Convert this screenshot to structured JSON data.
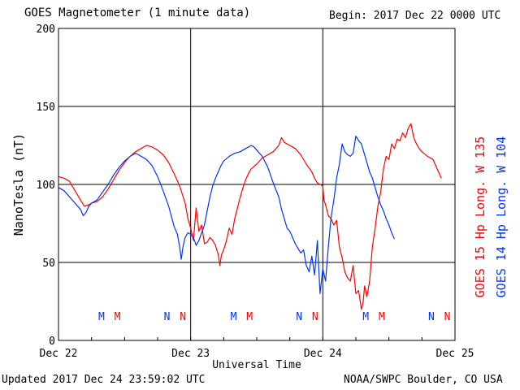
{
  "header": {
    "title": "GOES Magnetometer (1 minute data)",
    "begin": "Begin:  2017 Dec 22 0000 UTC"
  },
  "footer": {
    "updated": "Updated 2017 Dec 24 23:59:02 UTC",
    "credit": "NOAA/SWPC Boulder, CO USA"
  },
  "colors": {
    "red": "#ff0000",
    "blue": "#0033ff",
    "grid": "#000000"
  },
  "chart_data": {
    "type": "line",
    "xlabel": "Universal Time",
    "ylabel": "NanoTesla (nT)",
    "xlim": [
      0,
      72
    ],
    "ylim": [
      0,
      200
    ],
    "yticks": [
      0,
      50,
      100,
      150,
      200
    ],
    "xticks": [
      {
        "hour": 0,
        "label": "Dec 22"
      },
      {
        "hour": 24,
        "label": "Dec 23"
      },
      {
        "hour": 48,
        "label": "Dec 24"
      },
      {
        "hour": 72,
        "label": "Dec 25"
      }
    ],
    "grid": true,
    "legend": [
      {
        "name": "GOES 15 Hp  Long. W 135",
        "color": "#ff0000"
      },
      {
        "name": "GOES 14 Hp  Long. W 104",
        "color": "#0033ff"
      }
    ],
    "series": [
      {
        "name": "GOES 15 Hp  Long. W 135",
        "color": "#ff0000",
        "points": [
          [
            0,
            105
          ],
          [
            1,
            104
          ],
          [
            2,
            102
          ],
          [
            3,
            96
          ],
          [
            4,
            90
          ],
          [
            4.7,
            86
          ],
          [
            5.5,
            87
          ],
          [
            6,
            88
          ],
          [
            7,
            89
          ],
          [
            8,
            92
          ],
          [
            9,
            97
          ],
          [
            10,
            103
          ],
          [
            11,
            109
          ],
          [
            12,
            114
          ],
          [
            13,
            118
          ],
          [
            14,
            121
          ],
          [
            15,
            123
          ],
          [
            16,
            125
          ],
          [
            17,
            124
          ],
          [
            18,
            122
          ],
          [
            19,
            119
          ],
          [
            20,
            114
          ],
          [
            21,
            107
          ],
          [
            22,
            99
          ],
          [
            23,
            88
          ],
          [
            23.5,
            78
          ],
          [
            24,
            72
          ],
          [
            24.5,
            64
          ],
          [
            25,
            85
          ],
          [
            25.5,
            70
          ],
          [
            26,
            74
          ],
          [
            26.5,
            62
          ],
          [
            27,
            63
          ],
          [
            27.5,
            66
          ],
          [
            28,
            64
          ],
          [
            28.5,
            61
          ],
          [
            29,
            55
          ],
          [
            29.3,
            48
          ],
          [
            29.6,
            55
          ],
          [
            30,
            58
          ],
          [
            30.5,
            64
          ],
          [
            31,
            72
          ],
          [
            31.5,
            68
          ],
          [
            32,
            78
          ],
          [
            32.5,
            85
          ],
          [
            33,
            92
          ],
          [
            33.5,
            98
          ],
          [
            34,
            103
          ],
          [
            34.5,
            107
          ],
          [
            35,
            110
          ],
          [
            36,
            113
          ],
          [
            37,
            117
          ],
          [
            38,
            119
          ],
          [
            39,
            121
          ],
          [
            40,
            125
          ],
          [
            40.5,
            130
          ],
          [
            41,
            127
          ],
          [
            42,
            125
          ],
          [
            43,
            123
          ],
          [
            44,
            119
          ],
          [
            45,
            113
          ],
          [
            46,
            108
          ],
          [
            46.5,
            104
          ],
          [
            47,
            101
          ],
          [
            47.5,
            100
          ],
          [
            48,
            99
          ],
          [
            48.2,
            90
          ],
          [
            48.5,
            87
          ],
          [
            49,
            80
          ],
          [
            49.5,
            78
          ],
          [
            50,
            74
          ],
          [
            50.5,
            77
          ],
          [
            51,
            60
          ],
          [
            51.5,
            53
          ],
          [
            52,
            44
          ],
          [
            52.5,
            40
          ],
          [
            53,
            38
          ],
          [
            53.5,
            48
          ],
          [
            54,
            30
          ],
          [
            54.5,
            32
          ],
          [
            55,
            20
          ],
          [
            55.3,
            24
          ],
          [
            55.6,
            35
          ],
          [
            56,
            28
          ],
          [
            56.5,
            38
          ],
          [
            57,
            60
          ],
          [
            57.5,
            72
          ],
          [
            58,
            86
          ],
          [
            58.5,
            95
          ],
          [
            59,
            110
          ],
          [
            59.5,
            118
          ],
          [
            60,
            116
          ],
          [
            60.5,
            126
          ],
          [
            61,
            123
          ],
          [
            61.5,
            129
          ],
          [
            62,
            128
          ],
          [
            62.5,
            133
          ],
          [
            63,
            130
          ],
          [
            63.5,
            136
          ],
          [
            64,
            139
          ],
          [
            64.5,
            130
          ],
          [
            65,
            126
          ],
          [
            65.5,
            123
          ],
          [
            66,
            121
          ],
          [
            67,
            118
          ],
          [
            68,
            116
          ],
          [
            68.5,
            112
          ],
          [
            69,
            108
          ],
          [
            69.5,
            104
          ]
        ]
      },
      {
        "name": "GOES 14 Hp  Long. W 104",
        "color": "#0033ff",
        "points": [
          [
            0,
            98
          ],
          [
            1,
            96
          ],
          [
            2,
            92
          ],
          [
            3,
            88
          ],
          [
            4,
            84
          ],
          [
            4.5,
            80
          ],
          [
            5,
            82
          ],
          [
            5.5,
            86
          ],
          [
            6,
            88
          ],
          [
            7,
            90
          ],
          [
            8,
            95
          ],
          [
            9,
            100
          ],
          [
            10,
            106
          ],
          [
            11,
            111
          ],
          [
            12,
            115
          ],
          [
            13,
            118
          ],
          [
            14,
            120
          ],
          [
            15,
            118
          ],
          [
            16,
            116
          ],
          [
            17,
            112
          ],
          [
            18,
            105
          ],
          [
            19,
            96
          ],
          [
            20,
            86
          ],
          [
            21,
            73
          ],
          [
            21.6,
            68
          ],
          [
            22,
            60
          ],
          [
            22.3,
            52
          ],
          [
            22.6,
            60
          ],
          [
            23,
            66
          ],
          [
            23.5,
            69
          ],
          [
            24,
            68
          ],
          [
            24.5,
            66
          ],
          [
            25,
            61
          ],
          [
            25.5,
            64
          ],
          [
            26,
            69
          ],
          [
            26.5,
            74
          ],
          [
            27,
            83
          ],
          [
            27.5,
            92
          ],
          [
            28,
            99
          ],
          [
            28.5,
            104
          ],
          [
            29,
            108
          ],
          [
            29.5,
            112
          ],
          [
            30,
            115
          ],
          [
            31,
            118
          ],
          [
            32,
            120
          ],
          [
            33,
            121
          ],
          [
            34,
            123
          ],
          [
            35,
            125
          ],
          [
            35.5,
            124
          ],
          [
            36,
            122
          ],
          [
            37,
            118
          ],
          [
            38,
            111
          ],
          [
            39,
            101
          ],
          [
            40,
            92
          ],
          [
            40.5,
            84
          ],
          [
            41,
            78
          ],
          [
            41.5,
            72
          ],
          [
            42,
            70
          ],
          [
            42.5,
            66
          ],
          [
            43,
            62
          ],
          [
            43.5,
            59
          ],
          [
            44,
            56
          ],
          [
            44.5,
            58
          ],
          [
            45,
            48
          ],
          [
            45.5,
            44
          ],
          [
            46,
            54
          ],
          [
            46.5,
            42
          ],
          [
            47,
            64
          ],
          [
            47.5,
            30
          ],
          [
            48,
            46
          ],
          [
            48.5,
            38
          ],
          [
            49,
            60
          ],
          [
            49.5,
            79
          ],
          [
            50,
            90
          ],
          [
            50.5,
            104
          ],
          [
            51,
            113
          ],
          [
            51.5,
            126
          ],
          [
            52,
            121
          ],
          [
            52.5,
            119
          ],
          [
            53,
            118
          ],
          [
            53.5,
            120
          ],
          [
            54,
            131
          ],
          [
            54.5,
            128
          ],
          [
            55,
            126
          ],
          [
            55.5,
            120
          ],
          [
            56,
            114
          ],
          [
            56.5,
            108
          ],
          [
            57,
            104
          ],
          [
            57.5,
            98
          ],
          [
            58,
            92
          ],
          [
            58.5,
            87
          ],
          [
            59,
            83
          ],
          [
            59.5,
            78
          ],
          [
            60,
            74
          ],
          [
            60.5,
            69
          ],
          [
            61,
            65
          ]
        ]
      }
    ],
    "markers": [
      {
        "label": "M",
        "hour": 7.8,
        "color": "#0033ff"
      },
      {
        "label": "M",
        "hour": 10.7,
        "color": "#ff0000"
      },
      {
        "label": "N",
        "hour": 19.7,
        "color": "#0033ff"
      },
      {
        "label": "N",
        "hour": 22.6,
        "color": "#ff0000"
      },
      {
        "label": "M",
        "hour": 31.8,
        "color": "#0033ff"
      },
      {
        "label": "M",
        "hour": 34.7,
        "color": "#ff0000"
      },
      {
        "label": "N",
        "hour": 43.7,
        "color": "#0033ff"
      },
      {
        "label": "N",
        "hour": 46.6,
        "color": "#ff0000"
      },
      {
        "label": "M",
        "hour": 55.8,
        "color": "#0033ff"
      },
      {
        "label": "M",
        "hour": 58.7,
        "color": "#ff0000"
      },
      {
        "label": "N",
        "hour": 67.7,
        "color": "#0033ff"
      },
      {
        "label": "N",
        "hour": 70.6,
        "color": "#ff0000"
      }
    ]
  }
}
